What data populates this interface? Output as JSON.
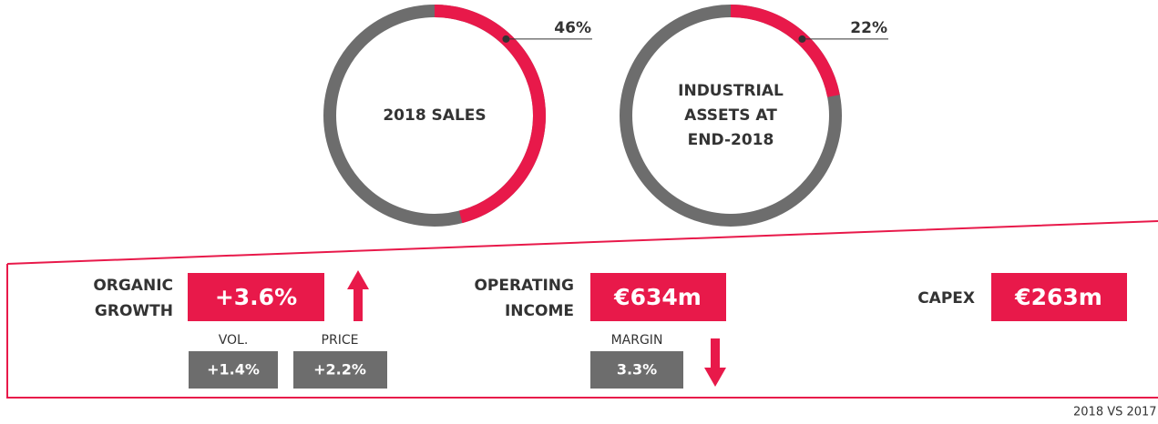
{
  "donuts": [
    {
      "title_lines": [
        "2018 SALES"
      ],
      "value": 46,
      "value_label": "46%"
    },
    {
      "title_lines": [
        "INDUSTRIAL",
        "ASSETS AT",
        "END-2018"
      ],
      "value": 22,
      "value_label": "22%"
    }
  ],
  "kpis": {
    "organic_growth": {
      "label_lines": [
        "ORGANIC",
        "GROWTH"
      ],
      "value": "+3.6%",
      "vol": {
        "label": "VOL.",
        "value": "+1.4%"
      },
      "price": {
        "label": "PRICE",
        "value": "+2.2%"
      }
    },
    "operating_income": {
      "label_lines": [
        "OPERATING",
        "INCOME"
      ],
      "value": "€634m",
      "margin": {
        "label": "MARGIN",
        "value": "3.3%"
      }
    },
    "capex": {
      "label": "CAPEX",
      "value": "€263m"
    }
  },
  "footnote": "2018 VS 2017"
}
